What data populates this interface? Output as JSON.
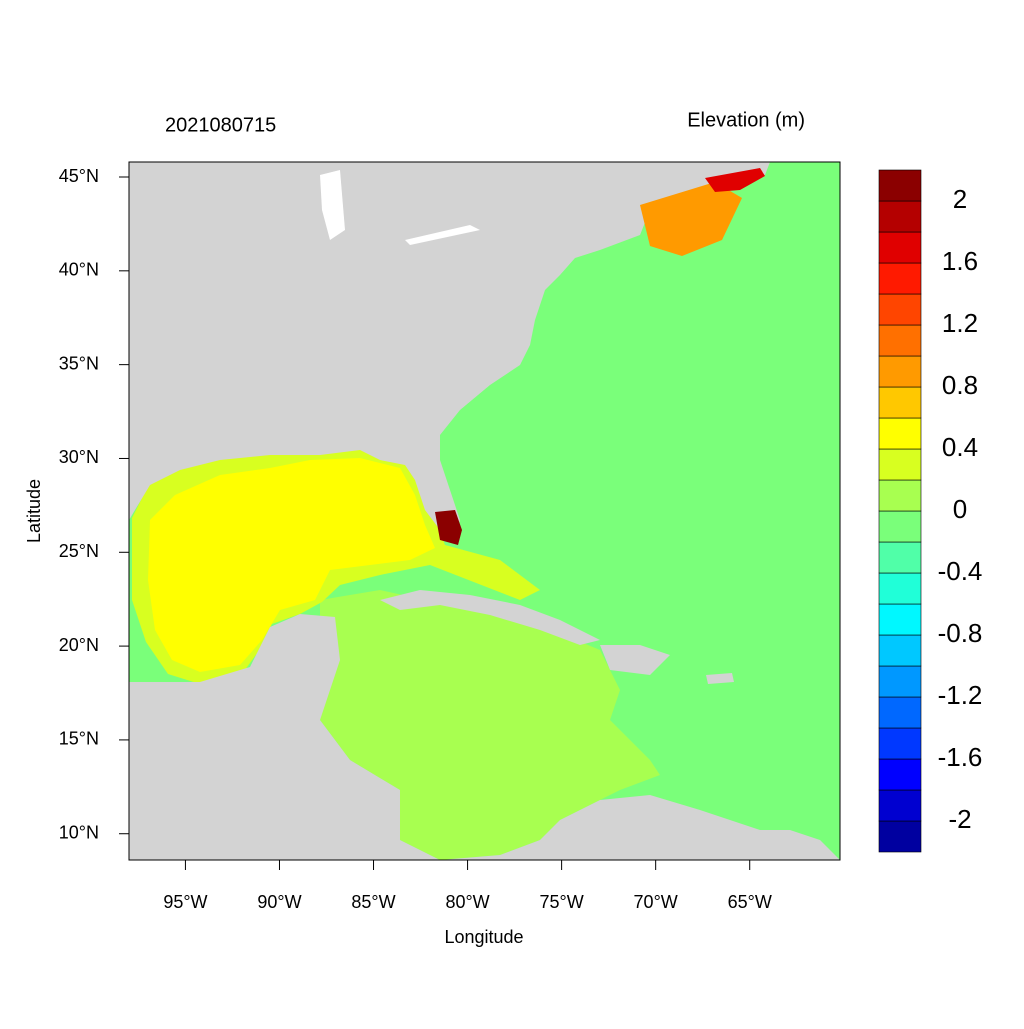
{
  "map": {
    "title": "2021080715",
    "legend_title": "Elevation (m)",
    "x_label": "Longitude",
    "y_label": "Latitude",
    "xlim": [
      -98,
      -60.2
    ],
    "ylim": [
      8.6,
      45.8
    ],
    "xticks": [
      {
        "value": -95,
        "label": "95°W"
      },
      {
        "value": -90,
        "label": "90°W"
      },
      {
        "value": -85,
        "label": "85°W"
      },
      {
        "value": -80,
        "label": "80°W"
      },
      {
        "value": -75,
        "label": "75°W"
      },
      {
        "value": -70,
        "label": "70°W"
      },
      {
        "value": -65,
        "label": "65°W"
      }
    ],
    "yticks": [
      {
        "value": 10,
        "label": "10°N"
      },
      {
        "value": 15,
        "label": "15°N"
      },
      {
        "value": 20,
        "label": "20°N"
      },
      {
        "value": 25,
        "label": "25°N"
      },
      {
        "value": 30,
        "label": "30°N"
      },
      {
        "value": 35,
        "label": "35°N"
      },
      {
        "value": 40,
        "label": "40°N"
      },
      {
        "value": 45,
        "label": "45°N"
      }
    ],
    "colorbar": {
      "bounds": [
        -2.2,
        2.2
      ],
      "colors": [
        "#0000a0",
        "#0000d0",
        "#0000ff",
        "#0038ff",
        "#0068ff",
        "#0098ff",
        "#00c8ff",
        "#00f8ff",
        "#20ffd8",
        "#50ffa8",
        "#7aff7a",
        "#a8ff50",
        "#d8ff20",
        "#ffff00",
        "#ffc800",
        "#ff9a00",
        "#ff7000",
        "#ff4500",
        "#ff1a00",
        "#e00000",
        "#b40000",
        "#8b0000"
      ],
      "ticks": [
        -2,
        -1.6,
        -1.2,
        -0.8,
        -0.4,
        0,
        0.4,
        0.8,
        1.2,
        1.6,
        2
      ]
    }
  }
}
